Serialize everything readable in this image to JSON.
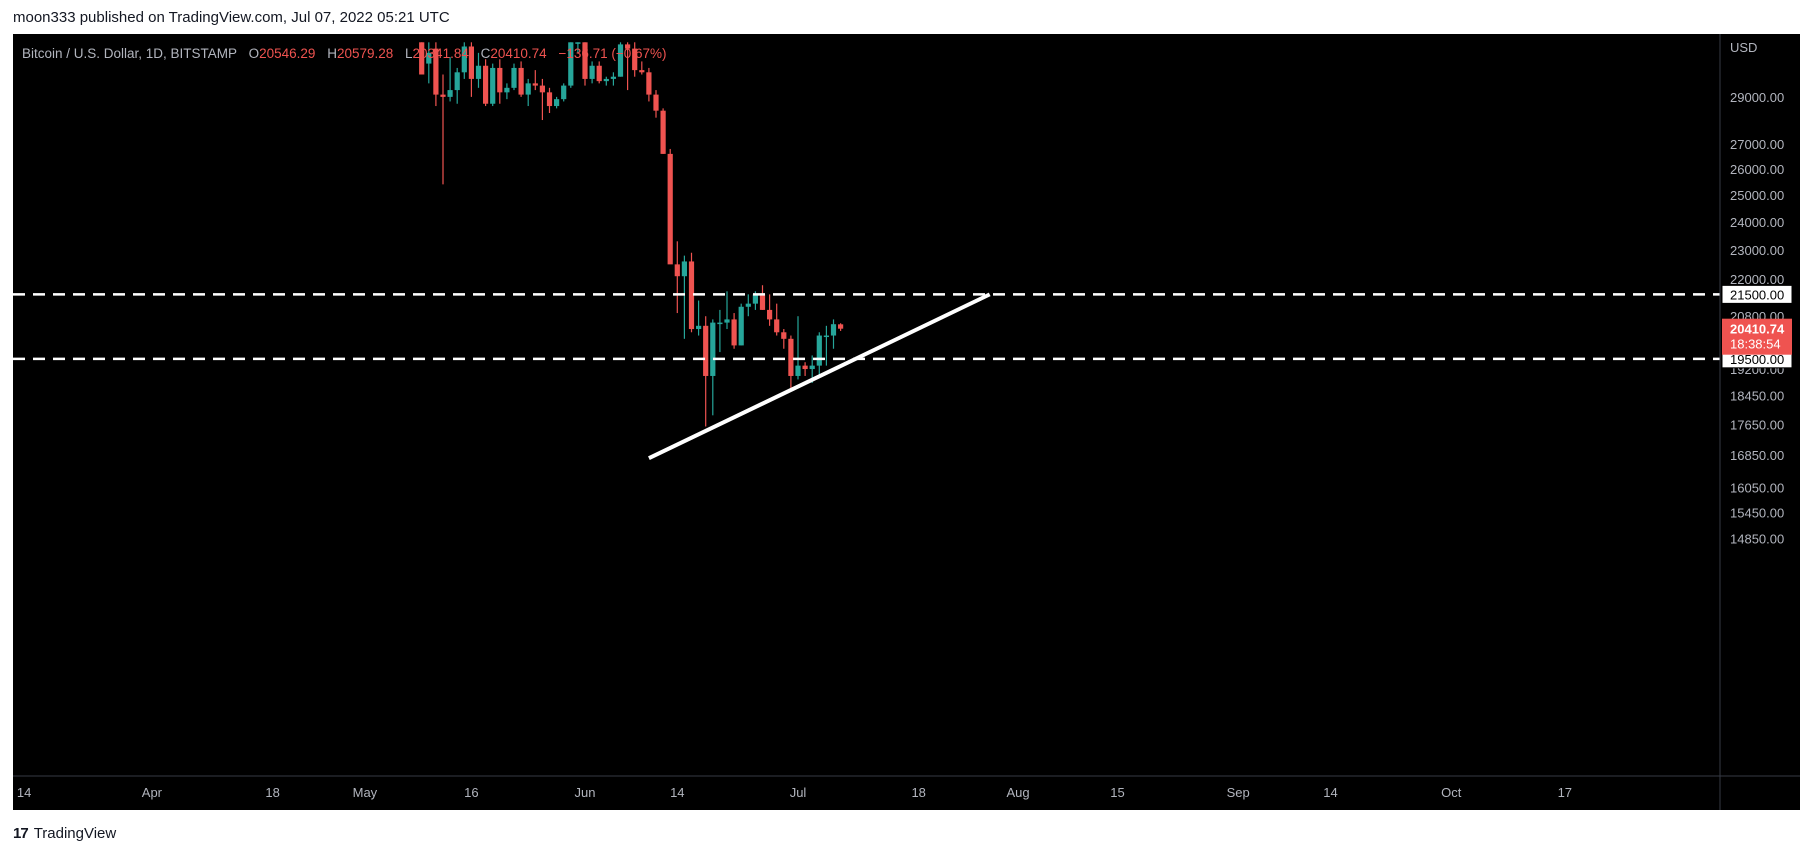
{
  "header": {
    "published_by": "moon333 published on TradingView.com, Jul 07, 2022 05:21 UTC"
  },
  "footer": {
    "logo_mark": "17",
    "brand": "TradingView"
  },
  "legend": {
    "symbol": "Bitcoin / U.S. Dollar, 1D, BITSTAMP",
    "o_label": "O",
    "o_value": "20546.29",
    "h_label": "H",
    "h_value": "20579.28",
    "l_label": "L",
    "l_value": "20341.84",
    "c_label": "C",
    "c_value": "20410.74",
    "change": "−136.71 (−0.67%)"
  },
  "price_axis": {
    "currency": "USD",
    "ticks": [
      "29000.00",
      "27000.00",
      "26000.00",
      "25000.00",
      "24000.00",
      "23000.00",
      "22000.00",
      "20800.00",
      "19200.00",
      "18450.00",
      "17650.00",
      "16850.00",
      "16050.00",
      "15450.00",
      "14850.00"
    ],
    "current_price": "20410.74",
    "countdown": "18:38:54",
    "level_labels": [
      "21500.00",
      "19500.00"
    ]
  },
  "time_axis": {
    "ticks": [
      "14",
      "Apr",
      "18",
      "May",
      "16",
      "Jun",
      "14",
      "Jul",
      "18",
      "Aug",
      "15",
      "Sep",
      "14",
      "Oct",
      "17"
    ]
  },
  "colors": {
    "up": "#26a69a",
    "down": "#ef5350",
    "background": "#000000",
    "drawing": "#ffffff"
  },
  "chart_data": {
    "type": "candlestick",
    "title": "Bitcoin / U.S. Dollar, 1D, BITSTAMP",
    "currency": "USD",
    "scale": "log",
    "ylim": [
      14300,
      31500
    ],
    "horizontal_levels": [
      21500,
      19500
    ],
    "trendline": {
      "start": [
        "2022-06-10",
        17500
      ],
      "end": [
        "2022-07-28",
        21500
      ]
    },
    "candles": [
      {
        "d": "2022-05-09",
        "o": 31500,
        "h": 31500,
        "l": 30000,
        "c": 30000
      },
      {
        "d": "2022-05-10",
        "o": 30500,
        "h": 31500,
        "l": 29600,
        "c": 31000
      },
      {
        "d": "2022-05-11",
        "o": 31200,
        "h": 31500,
        "l": 28600,
        "c": 29100
      },
      {
        "d": "2022-05-12",
        "o": 29100,
        "h": 30000,
        "l": 25400,
        "c": 29000
      },
      {
        "d": "2022-05-13",
        "o": 29000,
        "h": 30800,
        "l": 28800,
        "c": 29300
      },
      {
        "d": "2022-05-14",
        "o": 29300,
        "h": 30300,
        "l": 28700,
        "c": 30100
      },
      {
        "d": "2022-05-15",
        "o": 30100,
        "h": 31500,
        "l": 29800,
        "c": 31300
      },
      {
        "d": "2022-05-16",
        "o": 31300,
        "h": 31500,
        "l": 29000,
        "c": 29800
      },
      {
        "d": "2022-05-17",
        "o": 29800,
        "h": 31000,
        "l": 29400,
        "c": 30400
      },
      {
        "d": "2022-05-18",
        "o": 30400,
        "h": 30700,
        "l": 28600,
        "c": 28700
      },
      {
        "d": "2022-05-19",
        "o": 28700,
        "h": 30500,
        "l": 28600,
        "c": 30300
      },
      {
        "d": "2022-05-20",
        "o": 30300,
        "h": 30700,
        "l": 28700,
        "c": 29200
      },
      {
        "d": "2022-05-21",
        "o": 29200,
        "h": 29600,
        "l": 28900,
        "c": 29400
      },
      {
        "d": "2022-05-22",
        "o": 29400,
        "h": 30500,
        "l": 29300,
        "c": 30300
      },
      {
        "d": "2022-05-23",
        "o": 30300,
        "h": 30600,
        "l": 29000,
        "c": 29100
      },
      {
        "d": "2022-05-24",
        "o": 29100,
        "h": 29800,
        "l": 28600,
        "c": 29600
      },
      {
        "d": "2022-05-25",
        "o": 29600,
        "h": 30200,
        "l": 29300,
        "c": 29500
      },
      {
        "d": "2022-05-26",
        "o": 29500,
        "h": 29800,
        "l": 28000,
        "c": 29200
      },
      {
        "d": "2022-05-27",
        "o": 29200,
        "h": 29400,
        "l": 28300,
        "c": 28600
      },
      {
        "d": "2022-05-28",
        "o": 28600,
        "h": 29000,
        "l": 28500,
        "c": 28900
      },
      {
        "d": "2022-05-29",
        "o": 28900,
        "h": 29600,
        "l": 28800,
        "c": 29500
      },
      {
        "d": "2022-05-30",
        "o": 29500,
        "h": 31500,
        "l": 29400,
        "c": 31500
      },
      {
        "d": "2022-05-31",
        "o": 31500,
        "h": 31500,
        "l": 31000,
        "c": 31500
      },
      {
        "d": "2022-06-01",
        "o": 31500,
        "h": 31500,
        "l": 29500,
        "c": 29800
      },
      {
        "d": "2022-06-02",
        "o": 29800,
        "h": 30600,
        "l": 29600,
        "c": 30400
      },
      {
        "d": "2022-06-03",
        "o": 30400,
        "h": 30600,
        "l": 29600,
        "c": 29700
      },
      {
        "d": "2022-06-04",
        "o": 29700,
        "h": 29900,
        "l": 29500,
        "c": 29800
      },
      {
        "d": "2022-06-05",
        "o": 29800,
        "h": 30100,
        "l": 29500,
        "c": 29900
      },
      {
        "d": "2022-06-06",
        "o": 29900,
        "h": 31500,
        "l": 29900,
        "c": 31400
      },
      {
        "d": "2022-06-07",
        "o": 31400,
        "h": 31500,
        "l": 29300,
        "c": 31200
      },
      {
        "d": "2022-06-08",
        "o": 31200,
        "h": 31500,
        "l": 29900,
        "c": 30200
      },
      {
        "d": "2022-06-09",
        "o": 30200,
        "h": 30600,
        "l": 30000,
        "c": 30100
      },
      {
        "d": "2022-06-10",
        "o": 30100,
        "h": 30300,
        "l": 28800,
        "c": 29100
      },
      {
        "d": "2022-06-11",
        "o": 29100,
        "h": 29300,
        "l": 28100,
        "c": 28400
      },
      {
        "d": "2022-06-12",
        "o": 28400,
        "h": 28500,
        "l": 26600,
        "c": 26600
      },
      {
        "d": "2022-06-13",
        "o": 26600,
        "h": 26800,
        "l": 22600,
        "c": 22500
      },
      {
        "d": "2022-06-14",
        "o": 22500,
        "h": 23300,
        "l": 20900,
        "c": 22100
      },
      {
        "d": "2022-06-15",
        "o": 22100,
        "h": 22800,
        "l": 20100,
        "c": 22600
      },
      {
        "d": "2022-06-16",
        "o": 22600,
        "h": 22900,
        "l": 20300,
        "c": 20400
      },
      {
        "d": "2022-06-17",
        "o": 20400,
        "h": 21300,
        "l": 20200,
        "c": 20500
      },
      {
        "d": "2022-06-18",
        "o": 20500,
        "h": 20800,
        "l": 17600,
        "c": 19000
      },
      {
        "d": "2022-06-19",
        "o": 19000,
        "h": 20700,
        "l": 17900,
        "c": 20600
      },
      {
        "d": "2022-06-20",
        "o": 20600,
        "h": 21000,
        "l": 19700,
        "c": 20600
      },
      {
        "d": "2022-06-21",
        "o": 20600,
        "h": 21600,
        "l": 20400,
        "c": 20700
      },
      {
        "d": "2022-06-22",
        "o": 20700,
        "h": 20900,
        "l": 19800,
        "c": 19900
      },
      {
        "d": "2022-06-23",
        "o": 19900,
        "h": 21200,
        "l": 19900,
        "c": 21100
      },
      {
        "d": "2022-06-24",
        "o": 21100,
        "h": 21500,
        "l": 20800,
        "c": 21200
      },
      {
        "d": "2022-06-25",
        "o": 21200,
        "h": 21600,
        "l": 21000,
        "c": 21500
      },
      {
        "d": "2022-06-26",
        "o": 21500,
        "h": 21800,
        "l": 21000,
        "c": 21000
      },
      {
        "d": "2022-06-27",
        "o": 21000,
        "h": 21500,
        "l": 20500,
        "c": 20700
      },
      {
        "d": "2022-06-28",
        "o": 20700,
        "h": 21200,
        "l": 20200,
        "c": 20300
      },
      {
        "d": "2022-06-29",
        "o": 20300,
        "h": 20400,
        "l": 19800,
        "c": 20100
      },
      {
        "d": "2022-06-30",
        "o": 20100,
        "h": 20200,
        "l": 18600,
        "c": 19000
      },
      {
        "d": "2022-07-01",
        "o": 19000,
        "h": 20800,
        "l": 18900,
        "c": 19300
      },
      {
        "d": "2022-07-02",
        "o": 19300,
        "h": 19400,
        "l": 19000,
        "c": 19200
      },
      {
        "d": "2022-07-03",
        "o": 19200,
        "h": 19600,
        "l": 18800,
        "c": 19300
      },
      {
        "d": "2022-07-04",
        "o": 19300,
        "h": 20300,
        "l": 19000,
        "c": 20200
      },
      {
        "d": "2022-07-05",
        "o": 20200,
        "h": 20500,
        "l": 19300,
        "c": 20200
      },
      {
        "d": "2022-07-06",
        "o": 20200,
        "h": 20700,
        "l": 19800,
        "c": 20550
      },
      {
        "d": "2022-07-07",
        "o": 20546.29,
        "h": 20579.28,
        "l": 20341.84,
        "c": 20410.74
      }
    ]
  }
}
